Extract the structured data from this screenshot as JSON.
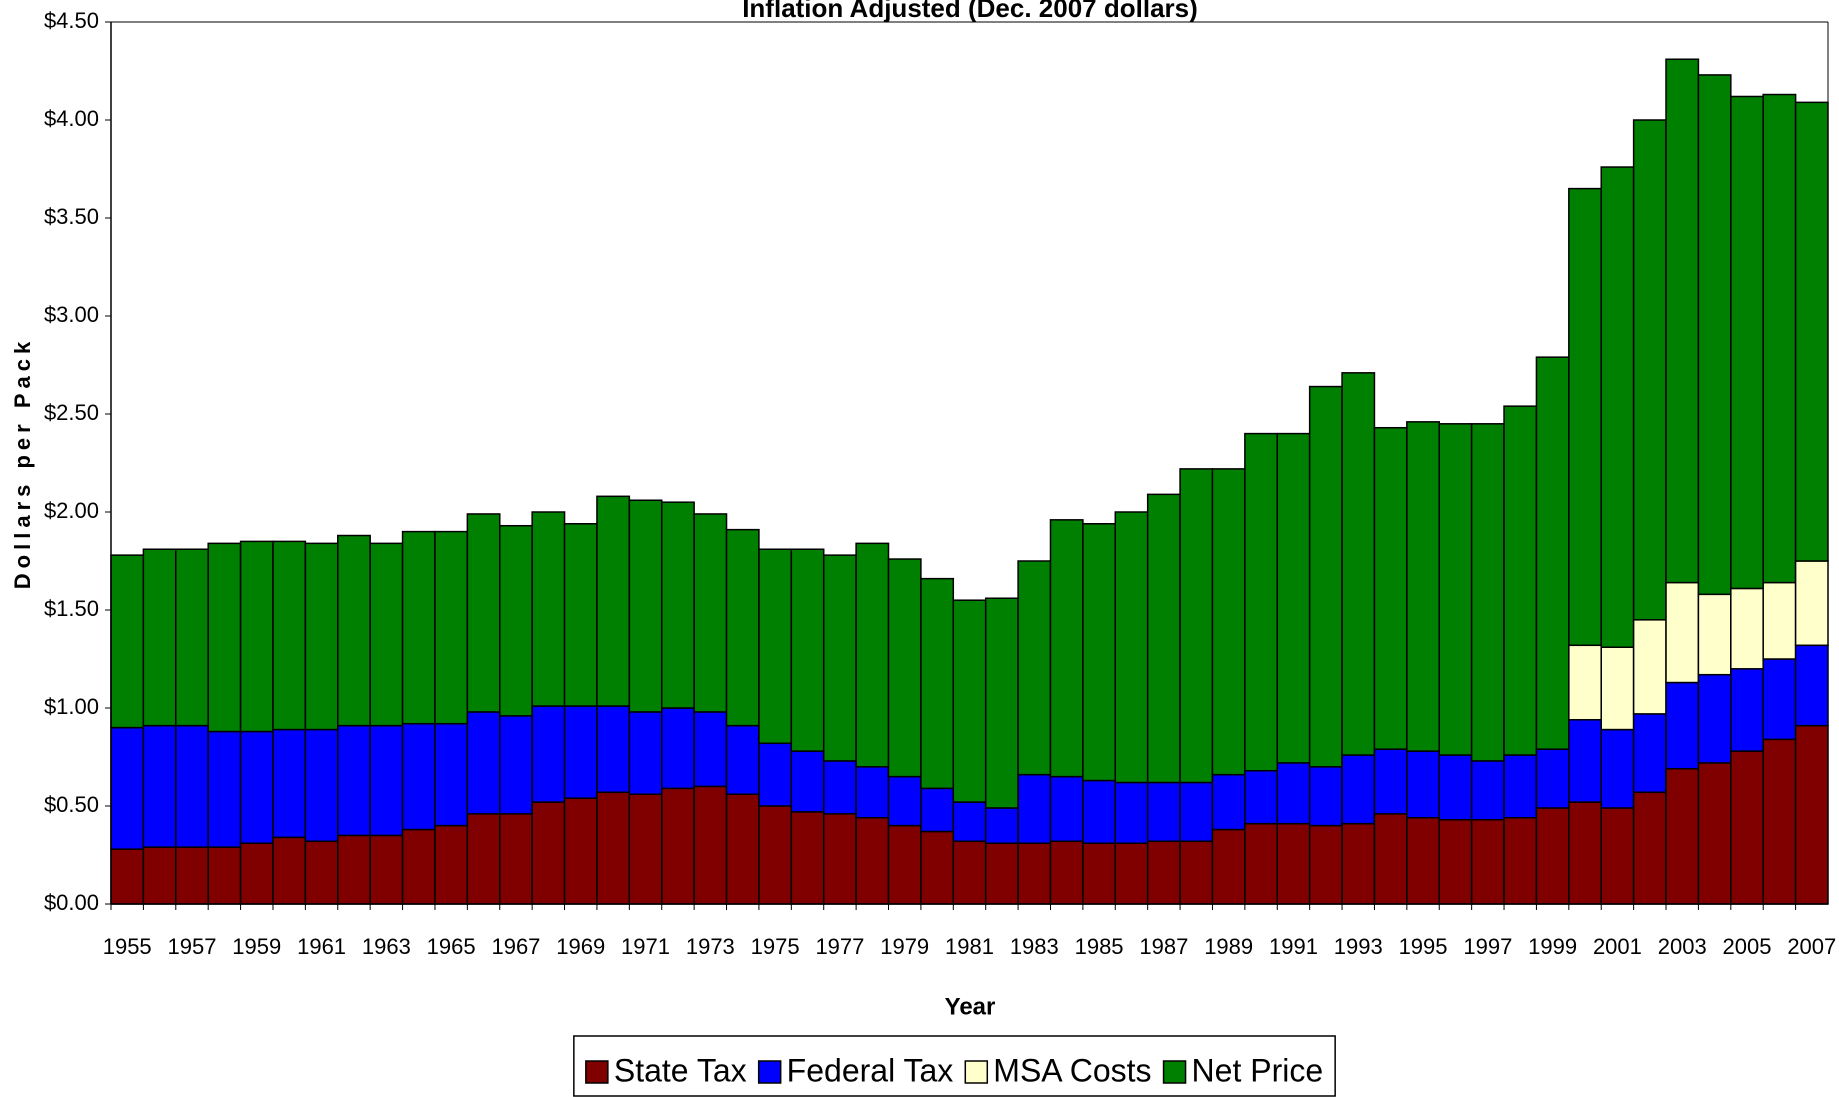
{
  "chart_data": {
    "type": "stacked-bar",
    "title": "Inflation Adjusted (Dec. 2007 dollars)",
    "x_label": "Year",
    "y_label": "Dollars per Pack",
    "categories": [
      "1955",
      null,
      "1957",
      null,
      "1959",
      null,
      "1961",
      null,
      "1963",
      null,
      "1965",
      null,
      "1967",
      null,
      "1969",
      null,
      "1971",
      null,
      "1973",
      null,
      "1975",
      null,
      "1977",
      null,
      "1979",
      null,
      "1981",
      null,
      "1983",
      null,
      "1985",
      null,
      "1987",
      null,
      "1989",
      null,
      "1991",
      null,
      "1993",
      null,
      "1995",
      null,
      "1997",
      null,
      "1999",
      null,
      "2001",
      null,
      "2003",
      null,
      "2005",
      null,
      "2007"
    ],
    "series": [
      {
        "name": "State Tax",
        "color": "#800000",
        "values": [
          0.28,
          0.29,
          0.29,
          0.29,
          0.31,
          0.34,
          0.32,
          0.35,
          0.35,
          0.38,
          0.4,
          0.46,
          0.46,
          0.52,
          0.54,
          0.57,
          0.56,
          0.59,
          0.6,
          0.56,
          0.5,
          0.47,
          0.46,
          0.44,
          0.4,
          0.37,
          0.32,
          0.31,
          0.31,
          0.32,
          0.31,
          0.31,
          0.32,
          0.32,
          0.38,
          0.41,
          0.41,
          0.4,
          0.41,
          0.46,
          0.44,
          0.43,
          0.43,
          0.44,
          0.49,
          0.52,
          0.49,
          0.57,
          0.69,
          0.72,
          0.78,
          0.84,
          0.91
        ]
      },
      {
        "name": "Federal Tax",
        "color": "#0000FF",
        "values": [
          0.62,
          0.62,
          0.62,
          0.59,
          0.57,
          0.55,
          0.57,
          0.56,
          0.56,
          0.54,
          0.52,
          0.52,
          0.5,
          0.49,
          0.47,
          0.44,
          0.42,
          0.41,
          0.38,
          0.35,
          0.32,
          0.31,
          0.27,
          0.26,
          0.25,
          0.22,
          0.2,
          0.18,
          0.35,
          0.33,
          0.32,
          0.31,
          0.3,
          0.3,
          0.28,
          0.27,
          0.31,
          0.3,
          0.35,
          0.33,
          0.34,
          0.33,
          0.3,
          0.32,
          0.3,
          0.42,
          0.4,
          0.4,
          0.44,
          0.45,
          0.42,
          0.41,
          0.41
        ]
      },
      {
        "name": "MSA Costs",
        "color": "#FFFFCC",
        "values": [
          0,
          0,
          0,
          0,
          0,
          0,
          0,
          0,
          0,
          0,
          0,
          0,
          0,
          0,
          0,
          0,
          0,
          0,
          0,
          0,
          0,
          0,
          0,
          0,
          0,
          0,
          0,
          0,
          0,
          0,
          0,
          0,
          0,
          0,
          0,
          0,
          0,
          0,
          0,
          0,
          0,
          0,
          0,
          0,
          0,
          0.38,
          0.42,
          0.48,
          0.51,
          0.41,
          0.41,
          0.39,
          0.43
        ]
      },
      {
        "name": "Net Price",
        "color": "#008000",
        "values": [
          0.88,
          0.9,
          0.9,
          0.96,
          0.97,
          0.96,
          0.95,
          0.97,
          0.93,
          0.98,
          0.98,
          1.01,
          0.97,
          0.99,
          0.93,
          1.07,
          1.08,
          1.05,
          1.01,
          1.0,
          0.99,
          1.03,
          1.05,
          1.14,
          1.11,
          1.07,
          1.03,
          1.07,
          1.09,
          1.31,
          1.31,
          1.38,
          1.47,
          1.6,
          1.56,
          1.72,
          1.68,
          1.94,
          1.95,
          1.64,
          1.68,
          1.69,
          1.72,
          1.78,
          2.0,
          2.33,
          2.45,
          2.55,
          2.67,
          2.65,
          2.51,
          2.49,
          2.34
        ]
      }
    ],
    "ylim": [
      0,
      4.5
    ],
    "yticks": [
      {
        "value": 0,
        "label": "$0.00"
      },
      {
        "value": 0.5,
        "label": "$0.50"
      },
      {
        "value": 1,
        "label": "$1.00"
      },
      {
        "value": 1.5,
        "label": "$1.50"
      },
      {
        "value": 2,
        "label": "$2.00"
      },
      {
        "value": 2.5,
        "label": "$2.50"
      },
      {
        "value": 3,
        "label": "$3.00"
      },
      {
        "value": 3.5,
        "label": "$3.50"
      },
      {
        "value": 4,
        "label": "$4.00"
      },
      {
        "value": 4.5,
        "label": "$4.50"
      }
    ],
    "grid": false,
    "legend": "bottom"
  }
}
